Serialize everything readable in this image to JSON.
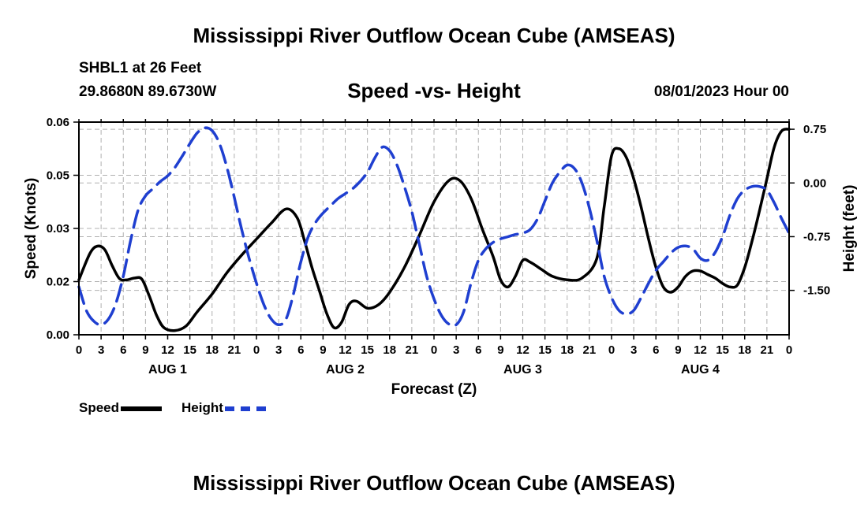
{
  "chart_data": {
    "type": "line",
    "title": "Mississippi River Outflow Ocean Cube (AMSEAS)",
    "station": "SHBL1 at 26 Feet",
    "coordinates": "29.8680N  89.6730W",
    "subtitle": "Speed -vs- Height",
    "datetime": "08/01/2023 Hour 00",
    "xlabel": "Forecast (Z)",
    "ylabel_left": "Speed (Knots)",
    "ylabel_right": "Height (feet)",
    "x_range": [
      0,
      96
    ],
    "ylim_left": [
      0,
      0.06
    ],
    "ylim_right": [
      -2.12,
      0.85
    ],
    "left_ticks": [
      "0.00",
      "0.02",
      "0.03",
      "0.05",
      "0.06"
    ],
    "left_tick_values": [
      0,
      0.015,
      0.03,
      0.045,
      0.06
    ],
    "right_ticks": [
      "0.75",
      "0.00",
      "-0.75",
      "-1.50"
    ],
    "right_tick_values": [
      0.75,
      0.0,
      -0.75,
      -1.5
    ],
    "x_tick_labels": [
      "0",
      "3",
      "6",
      "9",
      "12",
      "15",
      "18",
      "21",
      "0",
      "3",
      "6",
      "9",
      "12",
      "15",
      "18",
      "21",
      "0",
      "3",
      "6",
      "9",
      "12",
      "15",
      "18",
      "21",
      "0",
      "3",
      "6",
      "9",
      "12",
      "15",
      "18",
      "21",
      "0"
    ],
    "day_labels": [
      "AUG 1",
      "AUG 2",
      "AUG 3",
      "AUG 4"
    ],
    "grid": true,
    "series": [
      {
        "name": "Speed",
        "color": "#000000",
        "style": "solid",
        "axis": "left",
        "x": [
          0,
          1.5,
          2.5,
          3.5,
          4.5,
          5.5,
          6.5,
          7.5,
          8.5,
          9.5,
          10.5,
          11.5,
          13,
          14.5,
          16,
          18,
          20,
          22,
          24,
          26,
          28,
          29.5,
          30.5,
          31.5,
          32.5,
          33.5,
          34.5,
          35.5,
          36.5,
          37.5,
          39,
          40.5,
          42,
          44,
          46,
          48,
          50,
          51.5,
          53,
          54.5,
          56,
          57,
          58,
          59,
          60,
          61,
          62.5,
          64,
          66,
          68,
          70,
          71,
          72,
          73,
          74,
          75,
          76,
          77,
          78,
          79,
          80,
          81,
          82,
          83,
          84,
          85,
          86,
          87,
          88,
          89,
          90,
          91,
          92,
          93,
          94,
          95,
          96
        ],
        "values": [
          0.0155,
          0.023,
          0.025,
          0.024,
          0.0195,
          0.0158,
          0.0155,
          0.016,
          0.0157,
          0.011,
          0.0055,
          0.002,
          0.0012,
          0.0025,
          0.0065,
          0.0115,
          0.0175,
          0.0225,
          0.027,
          0.0315,
          0.0355,
          0.033,
          0.0265,
          0.019,
          0.0125,
          0.006,
          0.002,
          0.0035,
          0.0085,
          0.0095,
          0.0075,
          0.0085,
          0.012,
          0.019,
          0.028,
          0.0375,
          0.0435,
          0.0435,
          0.0385,
          0.03,
          0.022,
          0.0155,
          0.0135,
          0.0165,
          0.021,
          0.0205,
          0.0185,
          0.0165,
          0.0155,
          0.016,
          0.0215,
          0.036,
          0.0505,
          0.0525,
          0.05,
          0.044,
          0.036,
          0.027,
          0.019,
          0.0135,
          0.012,
          0.0135,
          0.0165,
          0.018,
          0.018,
          0.017,
          0.016,
          0.0145,
          0.0135,
          0.014,
          0.019,
          0.0265,
          0.035,
          0.044,
          0.053,
          0.0575,
          0.058
        ]
      },
      {
        "name": "Height",
        "color": "#1f3fd0",
        "style": "dashed",
        "axis": "right",
        "x": [
          0,
          1,
          2,
          3,
          4,
          5,
          6,
          7,
          8,
          9,
          10,
          11,
          12,
          13,
          14,
          15,
          16,
          17,
          18,
          19,
          20,
          21,
          22,
          23,
          24,
          25,
          26,
          27,
          28,
          29,
          30,
          31,
          32,
          33,
          34,
          35,
          36,
          37,
          38,
          39,
          40,
          41,
          42,
          43,
          44,
          45,
          46,
          47,
          48,
          49,
          50,
          51,
          52,
          53,
          54,
          55,
          56,
          57,
          58,
          59,
          60,
          61,
          62,
          63,
          64,
          65,
          66,
          67,
          68,
          69,
          70,
          71,
          72,
          73,
          74,
          75,
          76,
          77,
          78,
          79,
          80,
          81,
          82,
          83,
          84,
          85,
          86,
          87,
          88,
          89,
          90,
          91,
          92,
          93,
          94,
          95,
          96
        ],
        "values": [
          -1.45,
          -1.78,
          -1.93,
          -1.98,
          -1.9,
          -1.68,
          -1.3,
          -0.8,
          -0.38,
          -0.18,
          -0.08,
          0.02,
          0.1,
          0.22,
          0.38,
          0.55,
          0.7,
          0.77,
          0.73,
          0.55,
          0.22,
          -0.2,
          -0.65,
          -1.05,
          -1.4,
          -1.7,
          -1.9,
          -1.98,
          -1.9,
          -1.55,
          -1.1,
          -0.75,
          -0.55,
          -0.42,
          -0.32,
          -0.22,
          -0.15,
          -0.08,
          0.02,
          0.15,
          0.35,
          0.5,
          0.45,
          0.25,
          -0.05,
          -0.4,
          -0.85,
          -1.3,
          -1.62,
          -1.85,
          -1.97,
          -1.98,
          -1.8,
          -1.4,
          -1.08,
          -0.92,
          -0.83,
          -0.78,
          -0.75,
          -0.72,
          -0.7,
          -0.65,
          -0.5,
          -0.25,
          0.0,
          0.15,
          0.25,
          0.2,
          0.0,
          -0.35,
          -0.8,
          -1.3,
          -1.6,
          -1.78,
          -1.83,
          -1.78,
          -1.6,
          -1.4,
          -1.22,
          -1.1,
          -0.98,
          -0.9,
          -0.88,
          -0.92,
          -1.05,
          -1.08,
          -0.97,
          -0.75,
          -0.45,
          -0.22,
          -0.1,
          -0.05,
          -0.05,
          -0.1,
          -0.28,
          -0.5,
          -0.7
        ]
      }
    ]
  },
  "footer": {
    "title": "Mississippi River Outflow Ocean Cube (AMSEAS)"
  }
}
